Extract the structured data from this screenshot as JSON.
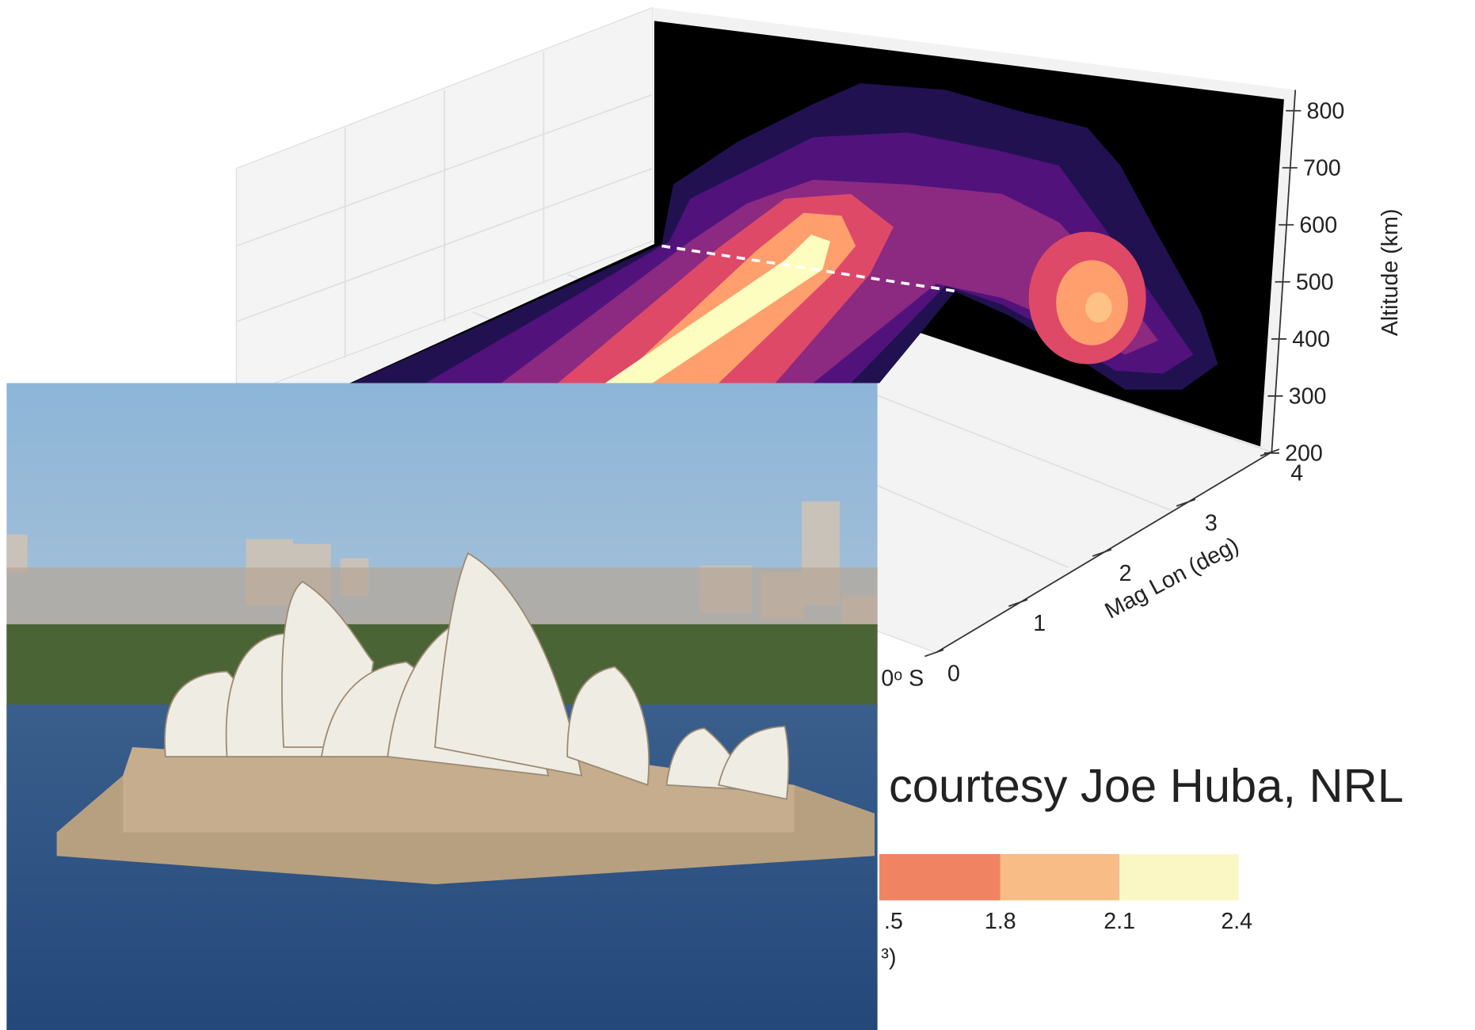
{
  "plot": {
    "altitude_axis": {
      "label": "Altitude (km)",
      "ticks": [
        800,
        700,
        600,
        500,
        400,
        300,
        200
      ]
    },
    "lon_axis": {
      "label": "Mag Lon (deg)",
      "ticks": [
        0,
        1,
        2,
        3,
        4
      ]
    },
    "lat_tick": "0ᵒ S",
    "colorbar": {
      "ticks": [
        ".5",
        "1.8",
        "2.1",
        "2.4"
      ],
      "label_fragment": "³)"
    }
  },
  "credit": "courtesy Joe Huba, NRL"
}
